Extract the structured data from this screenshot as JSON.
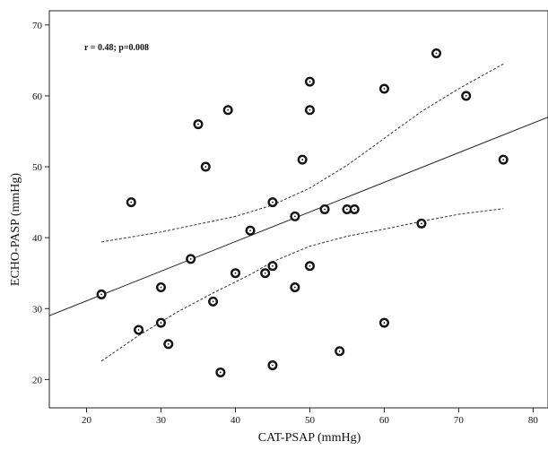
{
  "chart_data": {
    "type": "scatter",
    "annotation": "r = 0.48; p=0.008",
    "xlabel": "CAT-PSAP (mmHg)",
    "ylabel": "ECHO-PASP (mmHg)",
    "xlim": [
      15,
      82
    ],
    "ylim": [
      16,
      72
    ],
    "xticks": [
      20,
      30,
      40,
      50,
      60,
      70,
      80
    ],
    "yticks": [
      20,
      30,
      40,
      50,
      60,
      70
    ],
    "grid": false,
    "points": [
      {
        "x": 22,
        "y": 32
      },
      {
        "x": 26,
        "y": 45
      },
      {
        "x": 27,
        "y": 27
      },
      {
        "x": 30,
        "y": 33
      },
      {
        "x": 30,
        "y": 28
      },
      {
        "x": 31,
        "y": 25
      },
      {
        "x": 34,
        "y": 37
      },
      {
        "x": 35,
        "y": 56
      },
      {
        "x": 36,
        "y": 50
      },
      {
        "x": 37,
        "y": 31
      },
      {
        "x": 38,
        "y": 21
      },
      {
        "x": 39,
        "y": 58
      },
      {
        "x": 40,
        "y": 35
      },
      {
        "x": 42,
        "y": 41
      },
      {
        "x": 44,
        "y": 35
      },
      {
        "x": 45,
        "y": 45
      },
      {
        "x": 45,
        "y": 36
      },
      {
        "x": 45,
        "y": 22
      },
      {
        "x": 48,
        "y": 43
      },
      {
        "x": 48,
        "y": 33
      },
      {
        "x": 49,
        "y": 51
      },
      {
        "x": 50,
        "y": 62
      },
      {
        "x": 50,
        "y": 58
      },
      {
        "x": 50,
        "y": 36
      },
      {
        "x": 52,
        "y": 44
      },
      {
        "x": 54,
        "y": 24
      },
      {
        "x": 55,
        "y": 44
      },
      {
        "x": 56,
        "y": 44
      },
      {
        "x": 60,
        "y": 61
      },
      {
        "x": 60,
        "y": 28
      },
      {
        "x": 65,
        "y": 42
      },
      {
        "x": 67,
        "y": 66
      },
      {
        "x": 71,
        "y": 60
      },
      {
        "x": 76,
        "y": 51
      }
    ],
    "fit_line": {
      "x": [
        15,
        82
      ],
      "y": [
        29.0,
        57.0
      ]
    },
    "ci_upper": {
      "x": [
        22,
        30,
        40,
        45,
        50,
        55,
        60,
        65,
        70,
        76
      ],
      "y": [
        39.4,
        40.8,
        43.0,
        44.6,
        47.0,
        50.2,
        54.0,
        57.8,
        61.0,
        64.5
      ]
    },
    "ci_lower": {
      "x": [
        22,
        27,
        32,
        37,
        42,
        45,
        50,
        55,
        60,
        65,
        70,
        76
      ],
      "y": [
        22.6,
        26.2,
        29.4,
        32.2,
        34.8,
        36.6,
        38.8,
        40.2,
        41.2,
        42.3,
        43.3,
        44.1
      ]
    }
  }
}
